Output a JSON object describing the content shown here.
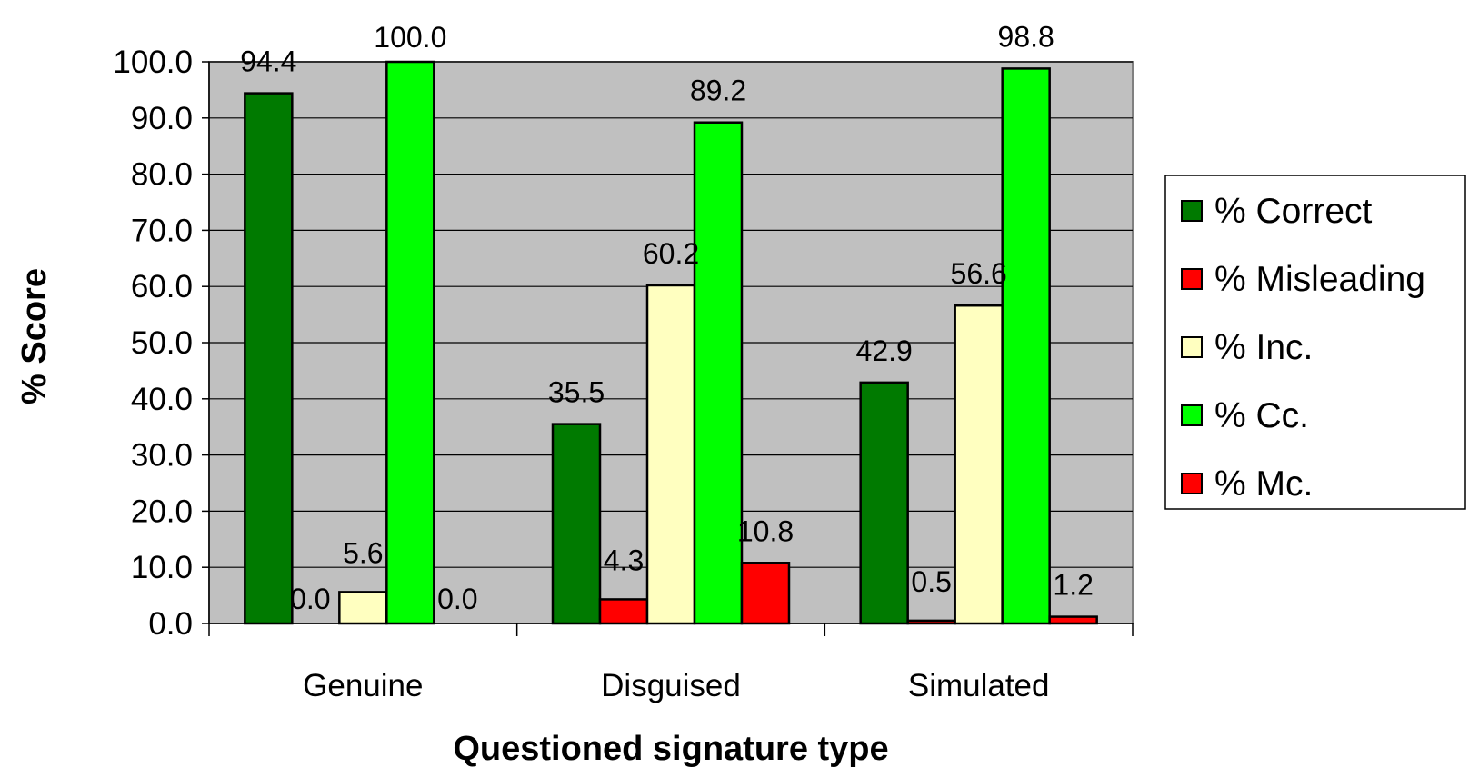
{
  "chart_data": {
    "type": "bar",
    "xlabel": "Questioned signature type",
    "ylabel": "% Score",
    "ylim": [
      0,
      100
    ],
    "yticks": [
      "0.0",
      "10.0",
      "20.0",
      "30.0",
      "40.0",
      "50.0",
      "60.0",
      "70.0",
      "80.0",
      "90.0",
      "100.0"
    ],
    "categories": [
      "Genuine",
      "Disguised",
      "Simulated"
    ],
    "grid": true,
    "legend_position": "right",
    "series": [
      {
        "name": "% Correct",
        "color": "#007a00",
        "values": [
          94.4,
          35.5,
          42.9
        ],
        "labels": [
          "94.4",
          "35.5",
          "42.9"
        ]
      },
      {
        "name": "% Misleading",
        "color": "#ff0000",
        "values": [
          0.0,
          4.3,
          0.5
        ],
        "labels": [
          "0.0",
          "4.3",
          "0.5"
        ]
      },
      {
        "name": "% Inc.",
        "color": "#ffffc0",
        "values": [
          5.6,
          60.2,
          56.6
        ],
        "labels": [
          "5.6",
          "60.2",
          "56.6"
        ]
      },
      {
        "name": "% Cc.",
        "color": "#00ff00",
        "values": [
          100.0,
          89.2,
          98.8
        ],
        "labels": [
          "100.0",
          "89.2",
          "98.8"
        ]
      },
      {
        "name": "% Mc.",
        "color": "#ff0000",
        "values": [
          0.0,
          10.8,
          1.2
        ],
        "labels": [
          "0.0",
          "10.8",
          "1.2"
        ]
      }
    ],
    "plot_background": "#c0c0c0"
  }
}
